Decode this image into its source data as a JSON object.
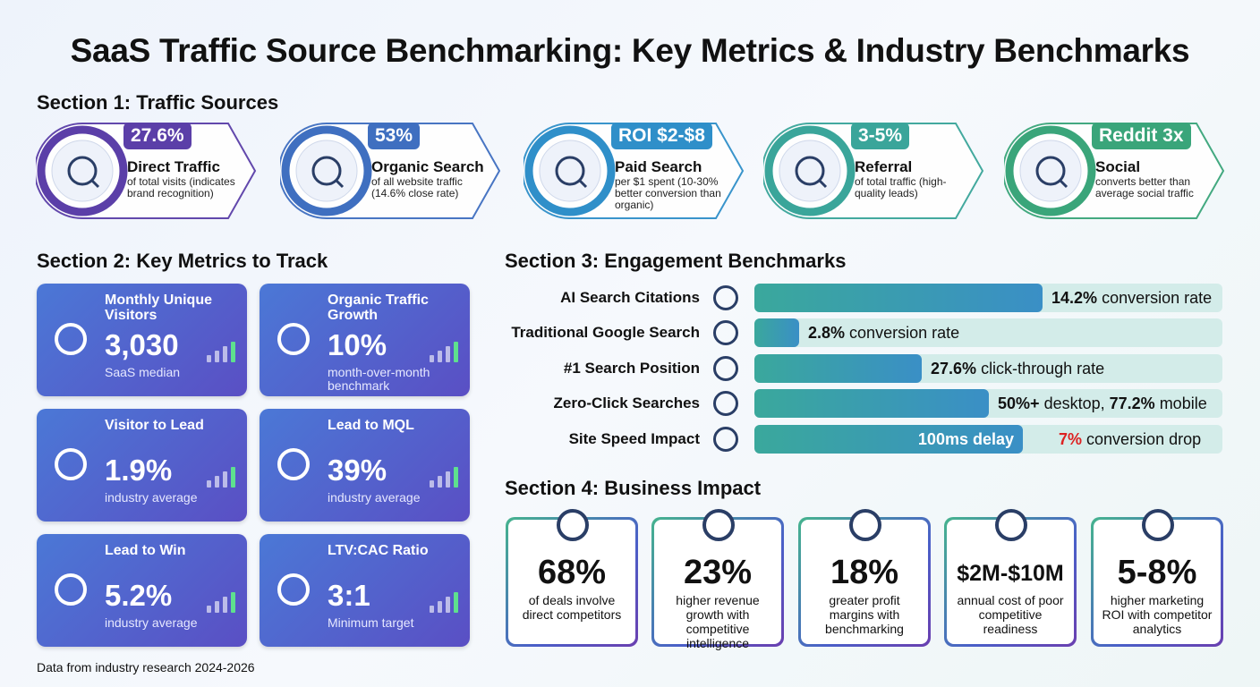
{
  "title": "SaaS Traffic Source Benchmarking: Key Metrics & Industry Benchmarks",
  "section1": {
    "heading": "Section 1: Traffic Sources",
    "items": [
      {
        "badge": "27.6%",
        "name": "Direct Traffic",
        "desc": "of total visits (indicates brand recognition)"
      },
      {
        "badge": "53%",
        "name": "Organic Search",
        "desc": "of all website traffic (14.6% close rate)"
      },
      {
        "badge": "ROI $2-$8",
        "name": "Paid Search",
        "desc": "per $1 spent (10-30% better conversion than organic)"
      },
      {
        "badge": "3-5%",
        "name": "Referral",
        "desc": "of total traffic (high-quality leads)"
      },
      {
        "badge": "Reddit 3x",
        "name": "Social",
        "desc": "converts better than average social traffic"
      }
    ]
  },
  "section2": {
    "heading": "Section 2: Key Metrics to Track",
    "cards": [
      {
        "title": "Monthly Unique Visitors",
        "value": "3,030",
        "note": "SaaS median"
      },
      {
        "title": "Organic Traffic Growth",
        "value": "10%",
        "note": "month-over-month benchmark"
      },
      {
        "title": "Visitor to Lead",
        "value": "1.9%",
        "note": "industry average"
      },
      {
        "title": "Lead to MQL",
        "value": "39%",
        "note": "industry average"
      },
      {
        "title": "Lead to Win",
        "value": "5.2%",
        "note": "industry average"
      },
      {
        "title": "LTV:CAC Ratio",
        "value": "3:1",
        "note": "Minimum target"
      }
    ]
  },
  "section3": {
    "heading": "Section 3: Engagement Benchmarks",
    "rows": [
      {
        "label": "AI Search Citations",
        "value": "14.2%",
        "text": "conversion rate"
      },
      {
        "label": "Traditional Google Search",
        "value": "2.8%",
        "text": "conversion rate"
      },
      {
        "label": "#1 Search Position",
        "value": "27.6%",
        "text": "click-through rate"
      },
      {
        "label": "Zero-Click Searches",
        "value": "50%+",
        "text": "desktop,",
        "value2": "77.2%",
        "text2": "mobile"
      },
      {
        "label": "Site Speed Impact",
        "bar_text": "100ms delay",
        "value": "7%",
        "text": "conversion drop"
      }
    ]
  },
  "section4": {
    "heading": "Section 4: Business Impact",
    "cards": [
      {
        "value": "68%",
        "desc": "of deals involve direct competitors"
      },
      {
        "value": "23%",
        "desc": "higher revenue growth with competitive intelligence"
      },
      {
        "value": "18%",
        "desc": "greater profit margins with benchmarking"
      },
      {
        "value": "$2M-$10M",
        "desc": "annual cost of poor competitive readiness"
      },
      {
        "value": "5-8%",
        "desc": "higher marketing ROI with competitor analytics"
      }
    ]
  },
  "footer": "Data from industry research 2024-2026"
}
